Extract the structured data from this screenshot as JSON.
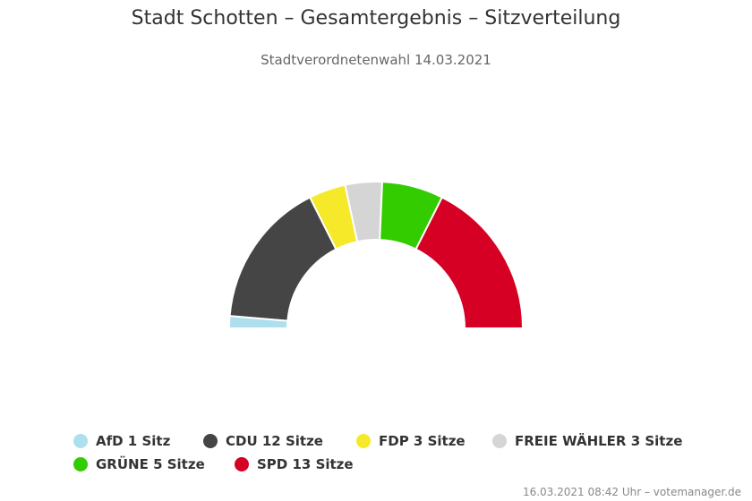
{
  "title": "Stadt Schotten – Gesamtergebnis – Sitzverteilung",
  "subtitle": "Stadtverordnetenwahl 14.03.2021",
  "chart_data": {
    "type": "pie",
    "variant": "semicircle",
    "categories": [
      "AfD",
      "CDU",
      "FDP",
      "FREIE WÄHLER",
      "GRÜNE",
      "SPD"
    ],
    "values": [
      1,
      12,
      3,
      3,
      5,
      13
    ],
    "colors": [
      "#ADDFEF",
      "#454545",
      "#F6E92A",
      "#D5D5D5",
      "#33CC00",
      "#D50024"
    ],
    "legend_labels": [
      "AfD 1 Sitz",
      "CDU 12 Sitze",
      "FDP 3 Sitze",
      "FREIE WÄHLER 3 Sitze",
      "GRÜNE 5 Sitze",
      "SPD 13 Sitze"
    ],
    "legend_position": "bottom"
  },
  "footer": "16.03.2021 08:42 Uhr – votemanager.de"
}
